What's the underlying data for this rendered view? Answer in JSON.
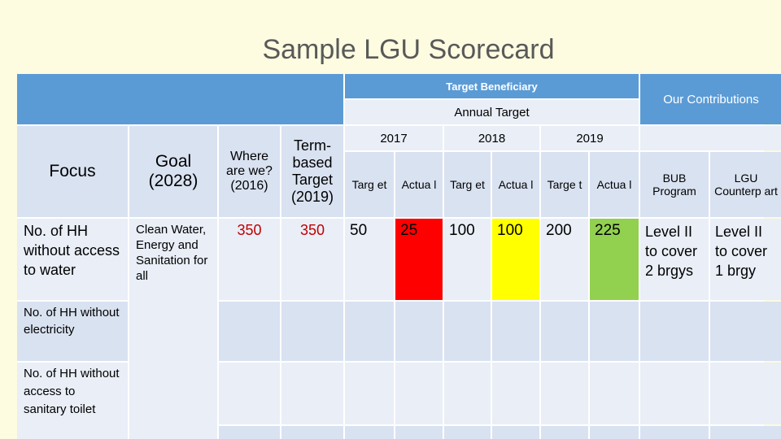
{
  "title": "Sample LGU Scorecard",
  "headers": {
    "target_beneficiary": "Target Beneficiary",
    "annual_target": "Annual Target",
    "our_contributions": "Our Contributions",
    "focus": "Focus",
    "goal": "Goal (2028)",
    "where_are_we": "Where are we? (2016)",
    "term_target": "Term-based Target (2019)",
    "year_2017": "2017",
    "year_2018": "2018",
    "year_2019": "2019",
    "target_2017": "Targ et",
    "actual_2017": "Actua l",
    "target_2018": "Targ et",
    "actual_2018": "Actua l",
    "target_2019": "Targe t",
    "actual_2019": "Actua l",
    "bub_program": "BUB Program",
    "lgu_counterpart": "LGU Counterp art"
  },
  "goal_text": "Clean Water, Energy and Sanitation for all",
  "rows": [
    {
      "focus": "No. of HH without access to water",
      "where_are_we": "350",
      "term_target": "350",
      "target_2017": "50",
      "actual_2017": "25",
      "target_2018": "100",
      "actual_2018": "100",
      "target_2019": "200",
      "actual_2019": "225",
      "bub": "Level II to cover 2 brgys",
      "lgu": "Level II to cover 1 brgy"
    },
    {
      "focus": "No. of HH without electricity"
    },
    {
      "focus": "No. of HH without access to sanitary toilet"
    }
  ],
  "colors": {
    "header_blue": "#5b9bd5",
    "cell_blue": "#d9e2f1",
    "behind_target": "#ff0000",
    "on_target": "#ffff00",
    "above_target": "#92d050",
    "baseline_red": "#c00000"
  }
}
